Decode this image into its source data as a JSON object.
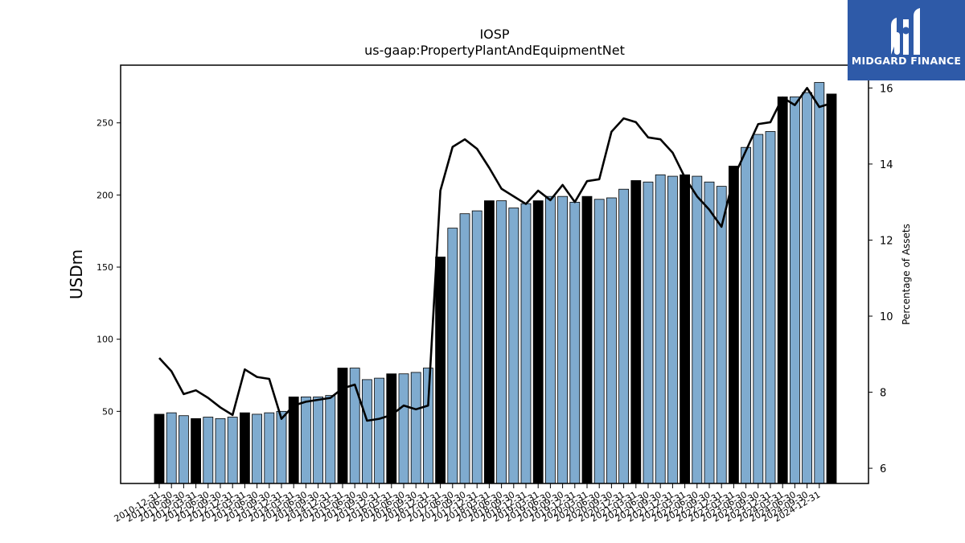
{
  "chart_data": {
    "type": "bar",
    "title": "IOSP",
    "subtitle": "us-gaap:PropertyPlantAndEquipmentNet",
    "ylabel": "USDm",
    "y2label": "Percentage of Assets",
    "ylim": [
      0,
      290
    ],
    "y2lim": [
      5.6,
      16.6
    ],
    "yticks": [
      50,
      100,
      150,
      200,
      250
    ],
    "y2ticks": [
      6,
      8,
      10,
      12,
      14,
      16
    ],
    "categories": [
      "2010-12-31",
      "2011-03-31",
      "2011-06-30",
      "2011-09-30",
      "2011-12-31",
      "2012-03-31",
      "2012-06-30",
      "2012-09-30",
      "2012-12-31",
      "2013-03-31",
      "2013-06-30",
      "2013-09-30",
      "2013-12-31",
      "2014-03-31",
      "2014-06-30",
      "2014-09-30",
      "2014-12-31",
      "2015-03-31",
      "2015-06-30",
      "2015-09-30",
      "2015-12-31",
      "2016-03-31",
      "2016-06-30",
      "2016-09-30",
      "2016-12-31",
      "2017-03-31",
      "2017-06-30",
      "2017-09-30",
      "2017-12-31",
      "2018-03-31",
      "2018-06-30",
      "2018-09-30",
      "2018-12-31",
      "2019-03-31",
      "2019-06-30",
      "2019-09-30",
      "2019-12-31",
      "2020-03-31",
      "2020-06-30",
      "2020-09-30",
      "2020-12-31",
      "2021-03-31",
      "2021-06-30",
      "2021-09-30",
      "2021-12-31",
      "2022-03-31",
      "2022-06-30",
      "2022-09-30",
      "2022-12-31",
      "2023-03-31",
      "2023-06-30",
      "2023-09-30",
      "2023-12-31",
      "2024-03-31",
      "2024-06-30",
      "2024-09-30"
    ],
    "xtick_labels": [
      "2010-12-31",
      "2011-06-30",
      "2011-09-30",
      "2012-03-31",
      "2012-06-30",
      "2012-09-30",
      "2012-12-31",
      "2013-03-31",
      "2013-06-30",
      "2013-09-30",
      "2013-12-31",
      "2014-03-31",
      "2014-06-30",
      "2014-09-30",
      "2014-12-31",
      "2015-03-31",
      "2015-06-30",
      "2015-09-30",
      "2015-12-31",
      "2016-03-31",
      "2016-06-30",
      "2016-09-30",
      "2016-12-31",
      "2017-03-31",
      "2017-06-30",
      "2017-09-30",
      "2017-12-31",
      "2018-03-31",
      "2018-06-30",
      "2018-09-30",
      "2018-12-31",
      "2019-03-31",
      "2019-06-30",
      "2019-09-30",
      "2019-12-31",
      "2020-03-31",
      "2020-06-30",
      "2020-09-30",
      "2020-12-31",
      "2021-03-31",
      "2021-06-30",
      "2021-09-30",
      "2021-12-31",
      "2022-03-31",
      "2022-06-30",
      "2022-09-30",
      "2022-12-31",
      "2023-03-31",
      "2023-06-30",
      "2023-09-30",
      "2023-12-31",
      "2024-03-31",
      "2024-06-30",
      "2024-09-30",
      "2024-12-31"
    ],
    "series": [
      {
        "type": "bar",
        "values": [
          48,
          49,
          47,
          45,
          46,
          45,
          46,
          49,
          48,
          49,
          50,
          60,
          60,
          60,
          61,
          80,
          80,
          72,
          73,
          76,
          76,
          77,
          80,
          157,
          177,
          187,
          189,
          196,
          196,
          191,
          194,
          196,
          199,
          199,
          195,
          199,
          197,
          198,
          204,
          210,
          209,
          214,
          213,
          214,
          213,
          209,
          206,
          220,
          233,
          242,
          244,
          268,
          268,
          271,
          278,
          270
        ],
        "highlight_indices": [
          0,
          3,
          7,
          11,
          15,
          19,
          23,
          27,
          31,
          35,
          39,
          43,
          47,
          51,
          55
        ],
        "colors": {
          "normal": "#7fabcf",
          "highlight": "#000000"
        }
      },
      {
        "type": "line",
        "values": [
          8.9,
          8.55,
          7.95,
          8.05,
          7.85,
          7.6,
          7.4,
          8.6,
          8.4,
          8.35,
          7.3,
          7.65,
          7.75,
          7.8,
          7.85,
          8.1,
          8.2,
          7.25,
          7.3,
          7.4,
          7.65,
          7.55,
          7.65,
          13.3,
          14.45,
          14.65,
          14.4,
          13.9,
          13.35,
          13.15,
          12.95,
          13.3,
          13.05,
          13.45,
          13.0,
          13.55,
          13.6,
          14.85,
          15.2,
          15.1,
          14.7,
          14.65,
          14.3,
          13.65,
          13.15,
          12.8,
          12.35,
          13.65,
          14.35,
          15.05,
          15.1,
          15.75,
          15.55,
          16.0,
          15.5,
          15.6
        ],
        "color": "#000000"
      }
    ]
  },
  "logo": {
    "text": "MIDGARD FINANCE"
  }
}
